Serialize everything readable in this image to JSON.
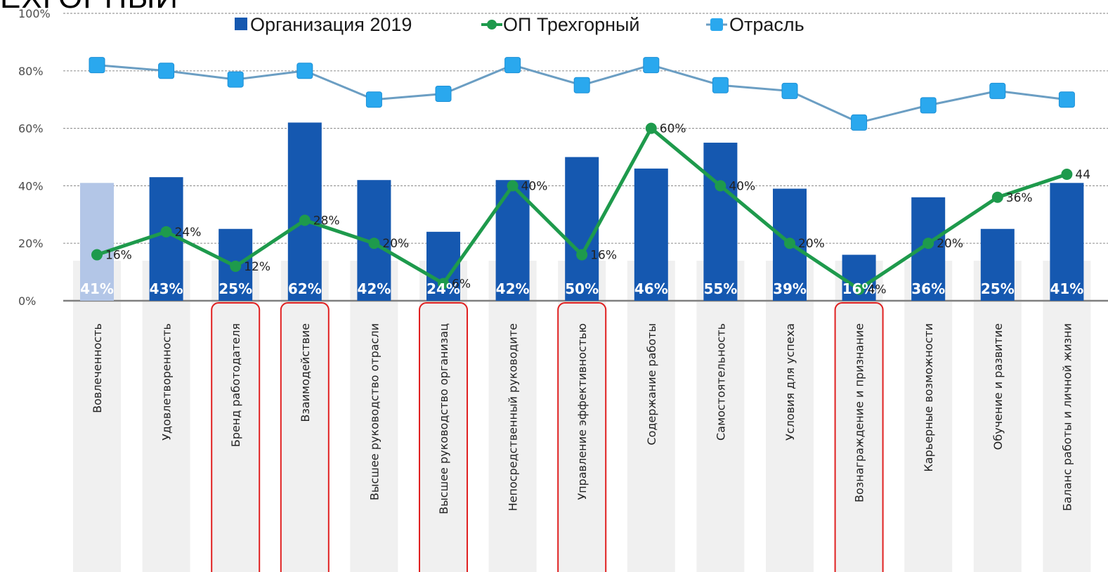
{
  "title": "ЕХГОРНЫЙ",
  "chart_data": {
    "type": "bar",
    "categories": [
      "Вовлеченность",
      "Удовлетворенность",
      "Бренд работодателя",
      "Взаимодействие",
      "Высшее руководство отрасли",
      "Высшее руководство организац",
      "Непосредственный руководите",
      "Управление эффективностью",
      "Содержание работы",
      "Самостоятельность",
      "Условия для успеха",
      "Вознаграждение и признание",
      "Карьерные возможности",
      "Обучение и развитие",
      "Баланс работы и личной жизни"
    ],
    "series": [
      {
        "name": "Организация 2019",
        "type": "bar",
        "color": "#1558b0",
        "first_bar_color": "#b3c6e7",
        "values": [
          41,
          43,
          25,
          62,
          42,
          24,
          42,
          50,
          46,
          55,
          39,
          16,
          36,
          25,
          41
        ],
        "labels": [
          "41%",
          "43%",
          "25%",
          "62%",
          "42%",
          "24%",
          "42%",
          "50%",
          "46%",
          "55%",
          "39%",
          "16%",
          "36%",
          "25%",
          "41%"
        ]
      },
      {
        "name": "ОП Трехгорный",
        "type": "line",
        "color": "#1e9a4c",
        "values": [
          16,
          24,
          12,
          28,
          20,
          6,
          40,
          16,
          60,
          40,
          20,
          4,
          20,
          36,
          44
        ],
        "labels": [
          "16%",
          "24%",
          "12%",
          "28%",
          "20%",
          "6%",
          "40%",
          "16%",
          "60%",
          "40%",
          "20%",
          "4%",
          "20%",
          "36%",
          "44"
        ]
      },
      {
        "name": "Отрасль",
        "type": "line",
        "color": "#6b9ec3",
        "marker_color": "#2aa8ee",
        "values": [
          82,
          80,
          77,
          80,
          70,
          72,
          82,
          75,
          82,
          75,
          73,
          62,
          68,
          73,
          70
        ]
      }
    ],
    "y_ticks": [
      "0%",
      "20%",
      "40%",
      "60%",
      "80%",
      "100%"
    ],
    "ylim": [
      0,
      100
    ],
    "grid": true,
    "legend_position": "top",
    "highlighted_categories": [
      2,
      3,
      5,
      7,
      11
    ],
    "highlight_color": "#e02020"
  }
}
